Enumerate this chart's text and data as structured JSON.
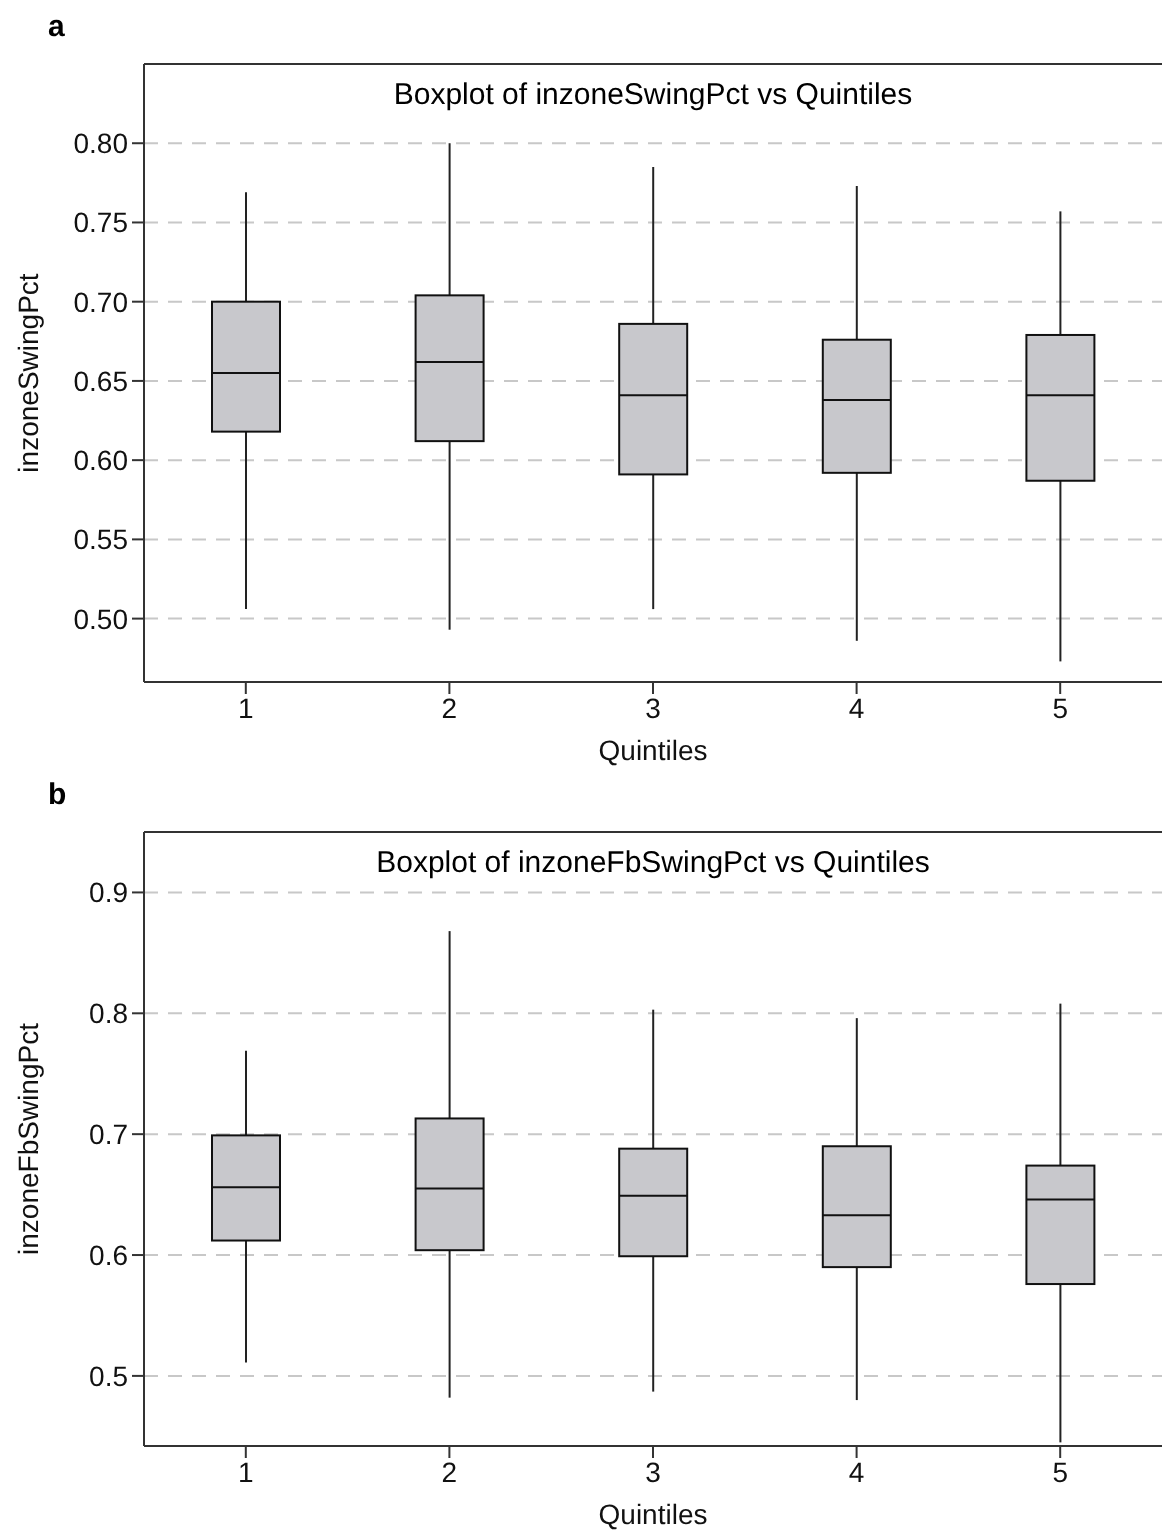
{
  "chart_data": [
    {
      "type": "box",
      "title": "Boxplot of inzoneSwingPct vs Quintiles",
      "xlabel": "Quintiles",
      "ylabel": "inzoneSwingPct",
      "annotations": [
        "a"
      ],
      "categories": [
        "1",
        "2",
        "3",
        "4",
        "5"
      ],
      "ylim": [
        0.46,
        0.85
      ],
      "yticks": [
        {
          "value": 0.5,
          "label": "0.50"
        },
        {
          "value": 0.55,
          "label": "0.55"
        },
        {
          "value": 0.6,
          "label": "0.60"
        },
        {
          "value": 0.65,
          "label": "0.65"
        },
        {
          "value": 0.7,
          "label": "0.70"
        },
        {
          "value": 0.75,
          "label": "0.75"
        },
        {
          "value": 0.8,
          "label": "0.80"
        }
      ],
      "grid": "y",
      "series": [
        {
          "color": "#c8c8cc",
          "boxes": [
            {
              "low": 0.506,
              "q1": 0.618,
              "median": 0.655,
              "q3": 0.7,
              "high": 0.769
            },
            {
              "low": 0.493,
              "q1": 0.612,
              "median": 0.662,
              "q3": 0.704,
              "high": 0.8
            },
            {
              "low": 0.506,
              "q1": 0.591,
              "median": 0.641,
              "q3": 0.686,
              "high": 0.785
            },
            {
              "low": 0.486,
              "q1": 0.592,
              "median": 0.638,
              "q3": 0.676,
              "high": 0.773
            },
            {
              "low": 0.473,
              "q1": 0.587,
              "median": 0.641,
              "q3": 0.679,
              "high": 0.757
            }
          ]
        }
      ]
    },
    {
      "type": "box",
      "title": "Boxplot of inzoneFbSwingPct vs Quintiles",
      "xlabel": "Quintiles",
      "ylabel": "inzoneFbSwingPct",
      "annotations": [
        "b"
      ],
      "categories": [
        "1",
        "2",
        "3",
        "4",
        "5"
      ],
      "ylim": [
        0.442,
        0.95
      ],
      "yticks": [
        0.5,
        0.6,
        0.7,
        0.8,
        0.9
      ],
      "grid": "y",
      "series": [
        {
          "color": "#c8c8cc",
          "boxes": [
            {
              "low": 0.511,
              "q1": 0.612,
              "median": 0.656,
              "q3": 0.699,
              "high": 0.769
            },
            {
              "low": 0.482,
              "q1": 0.604,
              "median": 0.655,
              "q3": 0.713,
              "high": 0.868
            },
            {
              "low": 0.487,
              "q1": 0.599,
              "median": 0.649,
              "q3": 0.688,
              "high": 0.803
            },
            {
              "low": 0.48,
              "q1": 0.59,
              "median": 0.633,
              "q3": 0.69,
              "high": 0.796
            },
            {
              "low": 0.445,
              "q1": 0.576,
              "median": 0.646,
              "q3": 0.674,
              "high": 0.808
            }
          ]
        }
      ]
    }
  ]
}
